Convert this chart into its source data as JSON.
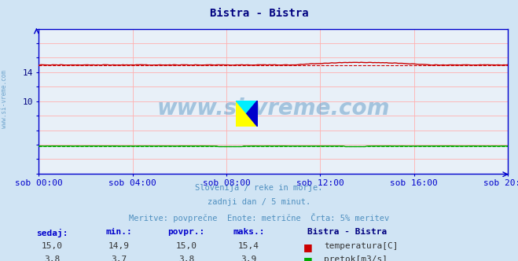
{
  "title": "Bistra - Bistra",
  "title_color": "#000080",
  "bg_color": "#d0e4f4",
  "plot_bg_color": "#e8f0f8",
  "grid_color": "#ffb0b0",
  "border_color": "#0000cc",
  "ylim": [
    0,
    20
  ],
  "ytick_visible": [
    10,
    14
  ],
  "xtick_labels": [
    "sob 00:00",
    "sob 04:00",
    "sob 08:00",
    "sob 12:00",
    "sob 16:00",
    "sob 20:00"
  ],
  "xtick_positions": [
    0,
    48,
    96,
    144,
    192,
    240
  ],
  "n_points": 241,
  "temp_base": 15.0,
  "temp_mean": 15.0,
  "temp_color": "#cc0000",
  "pretok_base": 3.8,
  "pretok_color": "#00aa00",
  "watermark": "www.si-vreme.com",
  "watermark_color": "#5090c0",
  "subtitle1": "Slovenija / reke in morje.",
  "subtitle2": "zadnji dan / 5 minut.",
  "subtitle3": "Meritve: povprečne  Enote: metrične  Črta: 5% meritev",
  "subtitle_color": "#5090c0",
  "legend_title": "Bistra - Bistra",
  "legend_title_color": "#000080",
  "label_color": "#0000cc",
  "sedaj_label": "sedaj:",
  "min_label": "min.:",
  "povpr_label": "povpr.:",
  "maks_label": "maks.:",
  "temp_sedaj": "15,0",
  "temp_min": "14,9",
  "temp_povpr": "15,0",
  "temp_maks": "15,4",
  "temp_legend": "temperatura[C]",
  "pretok_sedaj": "3,8",
  "pretok_min": "3,7",
  "pretok_povpr": "3,8",
  "pretok_maks": "3,9",
  "pretok_legend": "pretok[m3/s]",
  "tick_color": "#000080",
  "tick_fontsize": 8,
  "title_fontsize": 10
}
